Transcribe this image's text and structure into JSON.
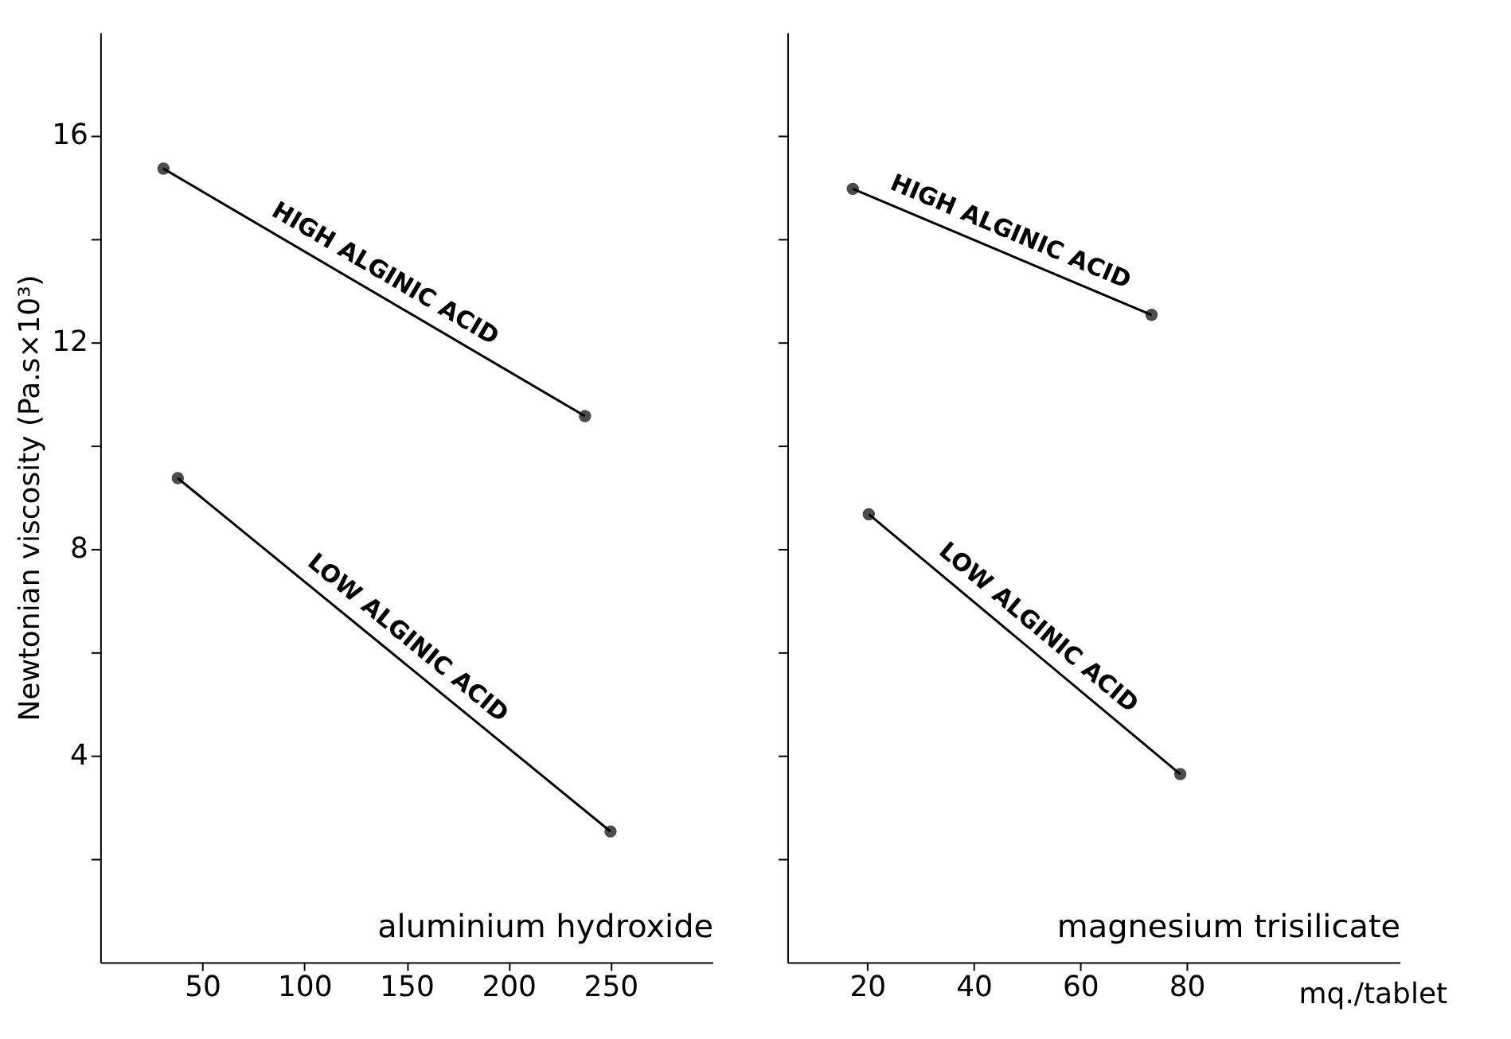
{
  "chart_data": [
    {
      "type": "line",
      "xlabel": "aluminium hydroxide",
      "ylabel": "Newtonian viscosity (Pa.s×10³)",
      "xlim": [
        0,
        300
      ],
      "xticks": [
        50,
        100,
        150,
        200,
        250
      ],
      "ylim": [
        0,
        18
      ],
      "yticks": [
        {
          "value": 2,
          "label": null
        },
        4,
        {
          "value": 6,
          "label": null
        },
        8,
        {
          "value": 10,
          "label": null
        },
        12,
        {
          "value": 14,
          "label": null
        },
        16
      ],
      "marker": "circle",
      "line_style": "solid",
      "grid": false,
      "legend": false,
      "series": [
        {
          "name": "HIGH ALGINIC ACID",
          "color": "#000000",
          "x": [
            31,
            237.5
          ],
          "values": [
            15.36,
            10.57
          ]
        },
        {
          "name": "LOW ALGINIC ACID",
          "color": "#000000",
          "x": [
            38,
            250
          ],
          "values": [
            9.37,
            2.53
          ]
        }
      ]
    },
    {
      "type": "line",
      "xlabel": "magnesium trisilicate",
      "xlim": [
        5,
        120
      ],
      "xticks": [
        20,
        40,
        60,
        80
      ],
      "ylim": [
        0,
        18
      ],
      "yticks": [
        {
          "value": 2,
          "label": null
        },
        {
          "value": 4,
          "label": null
        },
        {
          "value": 6,
          "label": null
        },
        {
          "value": 8,
          "label": null
        },
        {
          "value": 10,
          "label": null
        },
        {
          "value": 12,
          "label": null
        },
        {
          "value": 14,
          "label": null
        },
        {
          "value": 16,
          "label": null
        }
      ],
      "tick_labels": "x",
      "marker": "circle",
      "line_style": "solid",
      "grid": false,
      "legend": false,
      "annotations": [
        "mq./tablet"
      ],
      "series": [
        {
          "name": "HIGH ALGINIC ACID",
          "color": "#000000",
          "x": [
            17.3,
            73.4
          ],
          "values": [
            14.97,
            12.53
          ]
        },
        {
          "name": "LOW ALGINIC ACID",
          "color": "#000000",
          "x": [
            20.3,
            78.8
          ],
          "values": [
            8.67,
            3.64
          ]
        }
      ]
    }
  ]
}
